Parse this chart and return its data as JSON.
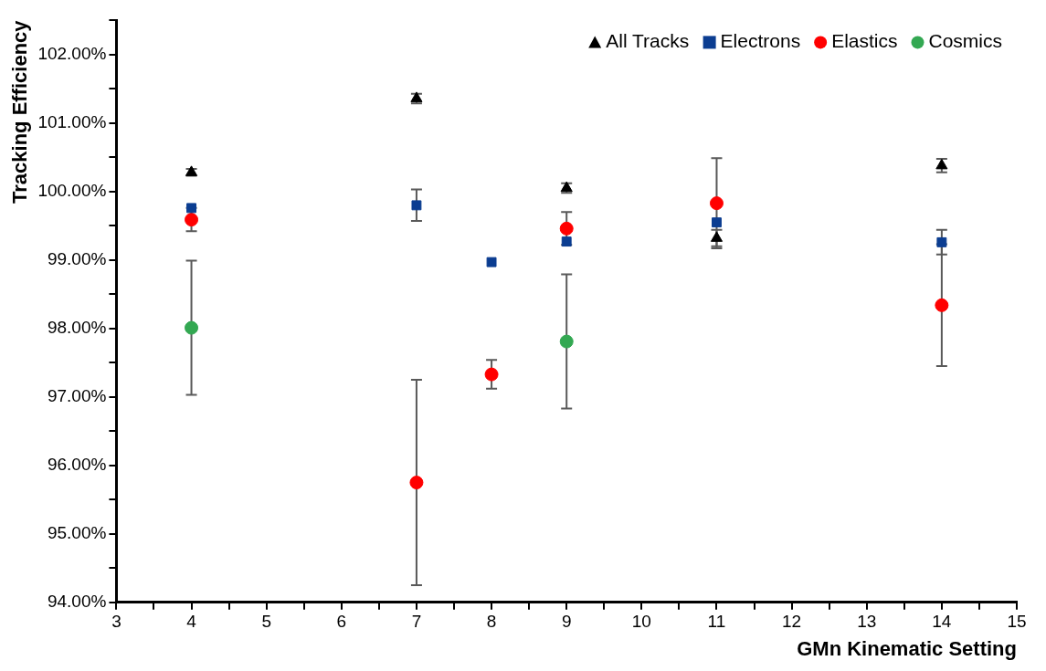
{
  "chart_data": {
    "type": "scatter",
    "xlabel": "GMn Kinematic Setting",
    "ylabel": "Tracking Efficiency",
    "xlim": [
      3,
      15
    ],
    "xticks": [
      3,
      {
        "value": 3.5,
        "label": null
      },
      4,
      {
        "value": 4.5,
        "label": null
      },
      5,
      {
        "value": 5.5,
        "label": null
      },
      6,
      {
        "value": 6.5,
        "label": null
      },
      7,
      {
        "value": 7.5,
        "label": null
      },
      8,
      {
        "value": 8.5,
        "label": null
      },
      9,
      {
        "value": 9.5,
        "label": null
      },
      10,
      {
        "value": 10.5,
        "label": null
      },
      11,
      {
        "value": 11.5,
        "label": null
      },
      12,
      {
        "value": 12.5,
        "label": null
      },
      13,
      {
        "value": 13.5,
        "label": null
      },
      14,
      {
        "value": 14.5,
        "label": null
      },
      15
    ],
    "ylim": [
      94,
      102.5
    ],
    "yticks": [
      {
        "value": 94,
        "label": "94.00%"
      },
      {
        "value": 94.5,
        "label": null
      },
      {
        "value": 95,
        "label": "95.00%"
      },
      {
        "value": 95.5,
        "label": null
      },
      {
        "value": 96,
        "label": "96.00%"
      },
      {
        "value": 96.5,
        "label": null
      },
      {
        "value": 97,
        "label": "97.00%"
      },
      {
        "value": 97.5,
        "label": null
      },
      {
        "value": 98,
        "label": "98.00%"
      },
      {
        "value": 98.5,
        "label": null
      },
      {
        "value": 99,
        "label": "99.00%"
      },
      {
        "value": 99.5,
        "label": null
      },
      {
        "value": 100,
        "label": "100.00%"
      },
      {
        "value": 100.5,
        "label": null
      },
      {
        "value": 101,
        "label": "101.00%"
      },
      {
        "value": 101.5,
        "label": null
      },
      {
        "value": 102,
        "label": "102.00%"
      },
      {
        "value": 102.5,
        "label": null
      }
    ],
    "grid": false,
    "legend": "top right",
    "series": [
      {
        "name": "All Tracks",
        "color": "#000000",
        "marker": "triangle",
        "x": [
          4,
          7,
          9,
          11,
          14
        ],
        "values": [
          100.28,
          101.36,
          100.05,
          99.32,
          100.38
        ],
        "errors": [
          0.05,
          0.07,
          0.07,
          0.12,
          0.1
        ]
      },
      {
        "name": "Electrons",
        "color": "#0b3d91",
        "marker": "square",
        "x": [
          4,
          7,
          8,
          9,
          11,
          14
        ],
        "values": [
          99.76,
          99.8,
          98.97,
          99.27,
          99.55,
          99.26
        ],
        "errors": [
          null,
          0.23,
          null,
          null,
          null,
          0.18
        ]
      },
      {
        "name": "Elastics",
        "color": "#ff0000",
        "marker": "circle",
        "x": [
          4,
          7,
          8,
          9,
          11,
          14
        ],
        "values": [
          99.59,
          95.75,
          97.33,
          99.46,
          99.83,
          98.34
        ],
        "errors": [
          0.17,
          1.5,
          0.21,
          0.24,
          0.66,
          0.89
        ]
      },
      {
        "name": "Cosmics",
        "color": "#33a852",
        "marker": "circle",
        "x": [
          4,
          9
        ],
        "values": [
          98.01,
          97.81
        ],
        "errors": [
          0.98,
          0.98
        ]
      }
    ]
  }
}
